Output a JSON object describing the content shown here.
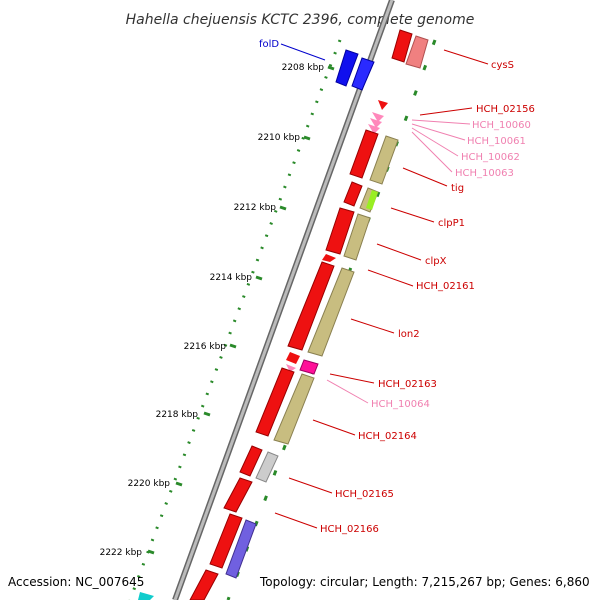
{
  "title": "Hahella chejuensis KCTC 2396, complete genome",
  "footer": {
    "accession": "Accession: NC_007645",
    "topology": "Topology: circular; Length: 7,215,267 bp; Genes: 6,860"
  },
  "ticks": [
    "2208 kbp",
    "2210 kbp",
    "2212 kbp",
    "2214 kbp",
    "2216 kbp",
    "2218 kbp",
    "2220 kbp",
    "2222 kbp"
  ],
  "gene_labels": [
    {
      "text": "folD",
      "color": "#0000cc"
    },
    {
      "text": "cysS",
      "color": "#cc0000"
    },
    {
      "text": "HCH_02156",
      "color": "#cc0000"
    },
    {
      "text": "HCH_10060",
      "color": "#f080b0"
    },
    {
      "text": "HCH_10061",
      "color": "#f080b0"
    },
    {
      "text": "HCH_10062",
      "color": "#f080b0"
    },
    {
      "text": "HCH_10063",
      "color": "#f080b0"
    },
    {
      "text": "tig",
      "color": "#cc0000"
    },
    {
      "text": "clpP1",
      "color": "#cc0000"
    },
    {
      "text": "clpX",
      "color": "#cc0000"
    },
    {
      "text": "HCH_02161",
      "color": "#cc0000"
    },
    {
      "text": "lon2",
      "color": "#cc0000"
    },
    {
      "text": "HCH_02163",
      "color": "#cc0000"
    },
    {
      "text": "HCH_10064",
      "color": "#f080b0"
    },
    {
      "text": "HCH_02164",
      "color": "#cc0000"
    },
    {
      "text": "HCH_02165",
      "color": "#cc0000"
    },
    {
      "text": "HCH_02166",
      "color": "#cc0000"
    }
  ],
  "colors": {
    "gene": "#ee1111",
    "rna": "#ff88bb",
    "cds_feature": "#c8bd80",
    "backbone": "#999999",
    "gc_dots": "#2a8a2a"
  }
}
